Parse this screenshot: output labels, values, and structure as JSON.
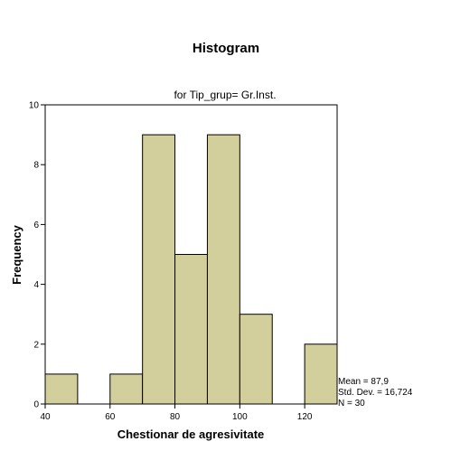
{
  "chart_data": {
    "type": "bar",
    "title": "Histogram",
    "subtitle": "for Tip_grup= Gr.Inst.",
    "xlabel": "Chestionar de agresivitate",
    "ylabel": "Frequency",
    "xlim": [
      40,
      130
    ],
    "ylim": [
      0,
      10
    ],
    "x_ticks": [
      "40",
      "60",
      "80",
      "100",
      "120"
    ],
    "y_ticks": [
      "0",
      "2",
      "4",
      "6",
      "8",
      "10"
    ],
    "bins": [
      {
        "from": 40,
        "to": 50,
        "value": 1
      },
      {
        "from": 50,
        "to": 60,
        "value": 0
      },
      {
        "from": 60,
        "to": 70,
        "value": 1
      },
      {
        "from": 70,
        "to": 80,
        "value": 9
      },
      {
        "from": 80,
        "to": 90,
        "value": 5
      },
      {
        "from": 90,
        "to": 100,
        "value": 9
      },
      {
        "from": 100,
        "to": 110,
        "value": 3
      },
      {
        "from": 110,
        "to": 120,
        "value": 0
      },
      {
        "from": 120,
        "to": 130,
        "value": 2
      }
    ],
    "bar_color": "#d3cf9c",
    "grid": false,
    "stats": {
      "mean": "Mean = 87,9",
      "std": "Std. Dev. = 16,724",
      "n": "N = 30"
    }
  }
}
